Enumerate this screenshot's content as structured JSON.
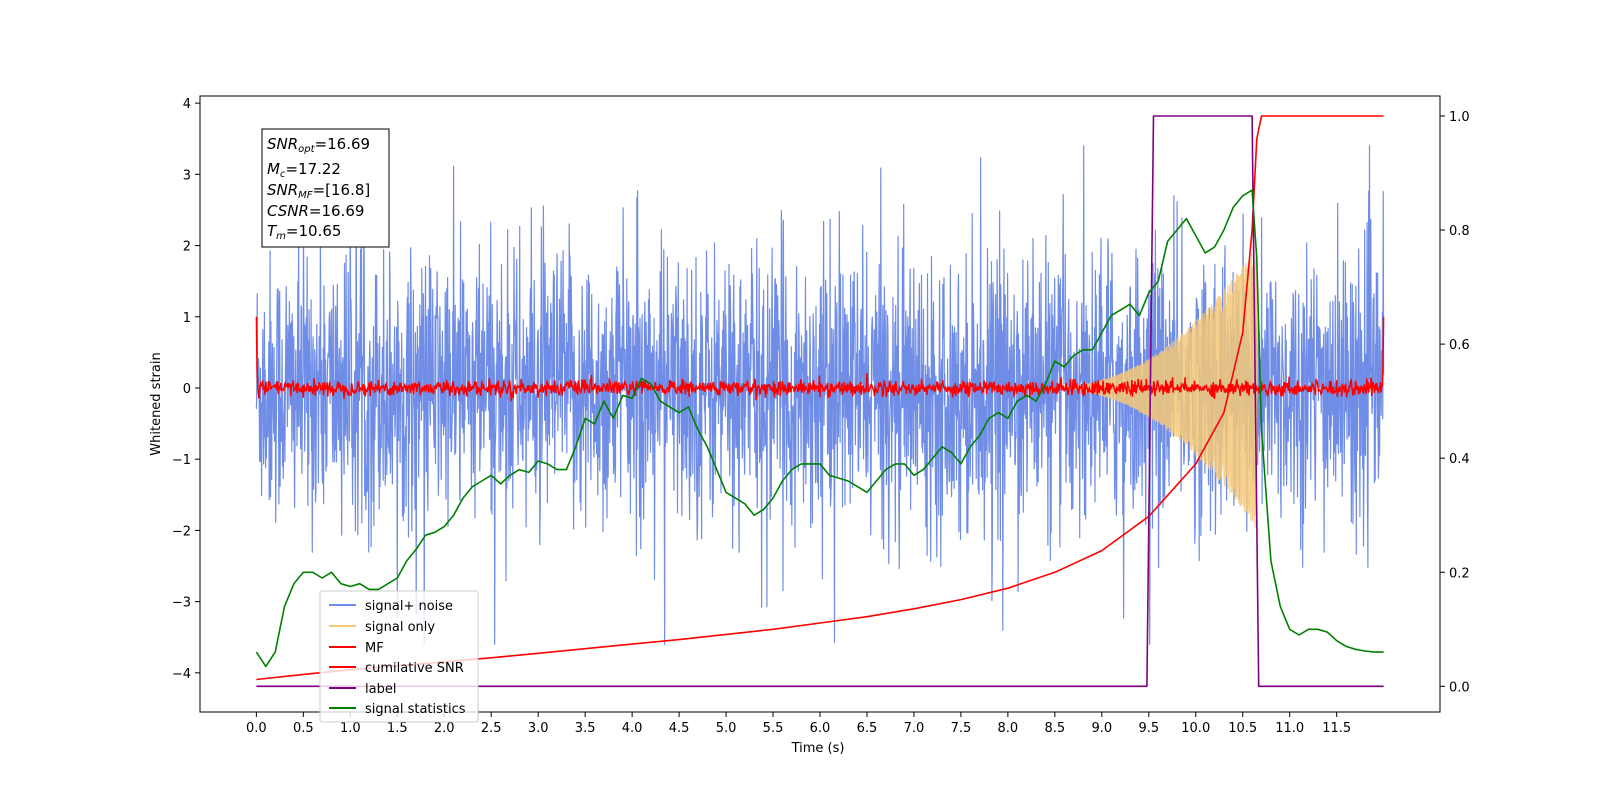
{
  "chart_data": {
    "type": "line",
    "xlabel": "Time (s)",
    "ylabel": "Whitened strain",
    "xlim": [
      -0.6,
      12.6
    ],
    "ylim": [
      -4.55,
      4.1
    ],
    "y2lim": [
      -0.045,
      1.035
    ],
    "xticks": [
      "0.0",
      "0.5",
      "1.0",
      "1.5",
      "2.0",
      "2.5",
      "3.0",
      "3.5",
      "4.0",
      "4.5",
      "5.0",
      "5.5",
      "6.0",
      "6.5",
      "7.0",
      "7.5",
      "8.0",
      "8.5",
      "9.0",
      "9.5",
      "10.0",
      "10.5",
      "11.0",
      "11.5"
    ],
    "yticks": [
      "4",
      "3",
      "2",
      "1",
      "0",
      "−1",
      "−2",
      "−3",
      "−4"
    ],
    "y2ticks": [
      "1.0",
      "0.8",
      "0.6",
      "0.4",
      "0.2",
      "0.0"
    ],
    "grid": false,
    "legend_position": "lower-left",
    "legend": [
      {
        "label": "signal+ noise",
        "color": "#6f8de6"
      },
      {
        "label": "signal only",
        "color": "#f5c878"
      },
      {
        "label": "MF",
        "color": "#ff0000"
      },
      {
        "label": "cumilative SNR",
        "color": "#ff0000"
      },
      {
        "label": "label",
        "color": "#800080"
      },
      {
        "label": "signal statistics",
        "color": "#008000"
      }
    ],
    "annotation": {
      "snr_opt_prefix": "SNR",
      "snr_opt_sub": "opt",
      "snr_opt_value": "=16.69",
      "mc_prefix": "M",
      "mc_sub": "c",
      "mc_value": "=17.22",
      "snr_mf_prefix": "SNR",
      "snr_mf_sub": "MF",
      "snr_mf_value": "=[16.8]",
      "csnr_prefix": "CSNR",
      "csnr_value": "=16.69",
      "tm_prefix": "T",
      "tm_sub": "m",
      "tm_value": "=10.65"
    },
    "series": [
      {
        "name": "signal+ noise",
        "axis": "left",
        "color": "#6f8de6",
        "description": "whitened noisy strain from 0 to 12 s, fluctuating roughly between -2.5 and 2.5 with spikes to about 3.3 and -3.6",
        "t_start": 0.0,
        "t_end": 12.0,
        "amplitude_range": [
          -3.6,
          3.4
        ]
      },
      {
        "name": "signal only",
        "axis": "left",
        "color": "#f5c878",
        "description": "chirp signal with amplitude growing from near 0 at 8.5 s to about 2.0 near 10.6 s, ending at 10.65 s",
        "t_start": 8.4,
        "t_merger": 10.65
      },
      {
        "name": "MF",
        "axis": "left",
        "color": "#ff0000",
        "description": "matched filter output near 0 with small noise, starting at 1.0 and ending at 1.0",
        "start_value": 1.0,
        "end_value": 1.0
      },
      {
        "name": "cumilative SNR",
        "axis": "right",
        "color": "#ff0000",
        "x": [
          0.0,
          0.5,
          1.0,
          1.5,
          2.0,
          2.5,
          3.0,
          3.5,
          4.0,
          4.5,
          5.0,
          5.5,
          6.0,
          6.5,
          7.0,
          7.5,
          8.0,
          8.5,
          9.0,
          9.5,
          10.0,
          10.3,
          10.5,
          10.6,
          10.65,
          10.7,
          12.0
        ],
        "values": [
          0.012,
          0.021,
          0.029,
          0.036,
          0.043,
          0.05,
          0.058,
          0.066,
          0.074,
          0.082,
          0.091,
          0.1,
          0.111,
          0.122,
          0.136,
          0.152,
          0.172,
          0.2,
          0.238,
          0.298,
          0.39,
          0.48,
          0.62,
          0.8,
          0.96,
          1.0,
          1.0
        ]
      },
      {
        "name": "label",
        "axis": "right",
        "color": "#800080",
        "x": [
          0.0,
          9.48,
          9.55,
          10.6,
          10.67,
          12.0
        ],
        "values": [
          0.0,
          0.0,
          1.0,
          1.0,
          0.0,
          0.0
        ]
      },
      {
        "name": "signal statistics",
        "axis": "right",
        "color": "#008000",
        "x": [
          0.0,
          0.1,
          0.2,
          0.3,
          0.4,
          0.5,
          0.6,
          0.7,
          0.8,
          0.9,
          1.0,
          1.1,
          1.2,
          1.3,
          1.4,
          1.5,
          1.6,
          1.7,
          1.8,
          1.9,
          2.0,
          2.1,
          2.2,
          2.3,
          2.4,
          2.5,
          2.6,
          2.7,
          2.8,
          2.9,
          3.0,
          3.1,
          3.2,
          3.3,
          3.4,
          3.5,
          3.6,
          3.7,
          3.8,
          3.9,
          4.0,
          4.1,
          4.2,
          4.3,
          4.4,
          4.5,
          4.6,
          4.7,
          4.8,
          4.9,
          5.0,
          5.1,
          5.2,
          5.3,
          5.4,
          5.5,
          5.6,
          5.7,
          5.8,
          5.9,
          6.0,
          6.1,
          6.2,
          6.3,
          6.4,
          6.5,
          6.6,
          6.7,
          6.8,
          6.9,
          7.0,
          7.1,
          7.2,
          7.3,
          7.4,
          7.5,
          7.6,
          7.7,
          7.8,
          7.9,
          8.0,
          8.1,
          8.2,
          8.3,
          8.4,
          8.5,
          8.6,
          8.7,
          8.8,
          8.9,
          9.0,
          9.1,
          9.2,
          9.3,
          9.4,
          9.5,
          9.6,
          9.7,
          9.8,
          9.9,
          10.0,
          10.1,
          10.2,
          10.3,
          10.4,
          10.5,
          10.6,
          10.65,
          10.7,
          10.8,
          10.9,
          11.0,
          11.1,
          11.2,
          11.3,
          11.4,
          11.5,
          11.6,
          11.7,
          11.8,
          11.9,
          12.0
        ],
        "values": [
          0.06,
          0.035,
          0.06,
          0.14,
          0.18,
          0.2,
          0.2,
          0.19,
          0.2,
          0.18,
          0.175,
          0.18,
          0.17,
          0.17,
          0.18,
          0.19,
          0.22,
          0.24,
          0.265,
          0.27,
          0.28,
          0.3,
          0.33,
          0.35,
          0.36,
          0.37,
          0.355,
          0.37,
          0.38,
          0.375,
          0.395,
          0.39,
          0.38,
          0.38,
          0.42,
          0.47,
          0.46,
          0.5,
          0.47,
          0.51,
          0.505,
          0.54,
          0.53,
          0.5,
          0.49,
          0.48,
          0.49,
          0.45,
          0.42,
          0.38,
          0.34,
          0.33,
          0.32,
          0.3,
          0.31,
          0.33,
          0.36,
          0.38,
          0.39,
          0.39,
          0.39,
          0.37,
          0.365,
          0.36,
          0.35,
          0.34,
          0.36,
          0.38,
          0.39,
          0.39,
          0.37,
          0.38,
          0.4,
          0.42,
          0.41,
          0.39,
          0.42,
          0.44,
          0.47,
          0.48,
          0.47,
          0.5,
          0.51,
          0.5,
          0.53,
          0.57,
          0.56,
          0.58,
          0.59,
          0.59,
          0.62,
          0.65,
          0.66,
          0.67,
          0.65,
          0.69,
          0.71,
          0.78,
          0.8,
          0.82,
          0.79,
          0.76,
          0.77,
          0.8,
          0.84,
          0.86,
          0.87,
          0.75,
          0.45,
          0.22,
          0.14,
          0.1,
          0.09,
          0.1,
          0.1,
          0.095,
          0.08,
          0.07,
          0.065,
          0.062,
          0.06,
          0.06
        ]
      }
    ]
  }
}
